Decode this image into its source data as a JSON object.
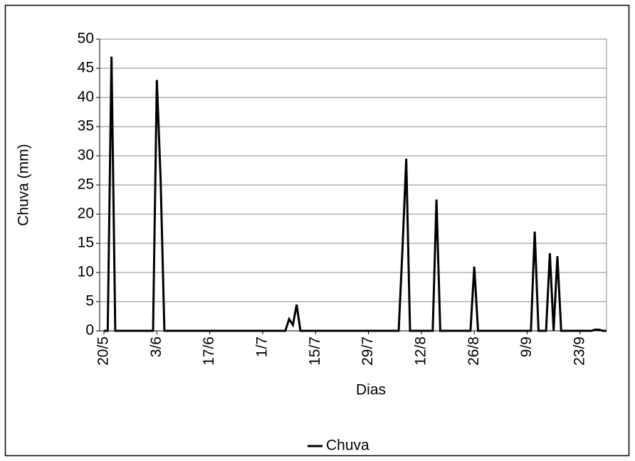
{
  "chart_data": {
    "type": "line",
    "x_label": "Dias",
    "y_label": "Chuva (mm)",
    "categories": [
      "20/5",
      null,
      null,
      null,
      null,
      null,
      null,
      null,
      null,
      null,
      null,
      null,
      null,
      null,
      "3/6",
      null,
      null,
      null,
      null,
      null,
      null,
      null,
      null,
      null,
      null,
      null,
      null,
      null,
      "17/6",
      null,
      null,
      null,
      null,
      null,
      null,
      null,
      null,
      null,
      null,
      null,
      null,
      null,
      "1/7",
      null,
      null,
      null,
      null,
      null,
      null,
      null,
      null,
      null,
      null,
      null,
      null,
      null,
      "15/7",
      null,
      null,
      null,
      null,
      null,
      null,
      null,
      null,
      null,
      null,
      null,
      null,
      null,
      "29/7",
      null,
      null,
      null,
      null,
      null,
      null,
      null,
      null,
      null,
      null,
      null,
      null,
      null,
      "12/8",
      null,
      null,
      null,
      null,
      null,
      null,
      null,
      null,
      null,
      null,
      null,
      null,
      null,
      "26/8",
      null,
      null,
      null,
      null,
      null,
      null,
      null,
      null,
      null,
      null,
      null,
      null,
      null,
      "9/9",
      null,
      null,
      null,
      null,
      null,
      null,
      null,
      null,
      null,
      null,
      null,
      null,
      null,
      "23/9",
      null,
      null,
      null,
      null,
      null,
      null,
      null
    ],
    "series": [
      {
        "name": "Chuva",
        "color": "#000000",
        "values": [
          0,
          0,
          47,
          0,
          0,
          0,
          0,
          0,
          0,
          0,
          0,
          0,
          0,
          0,
          43,
          26,
          0,
          0,
          0,
          0,
          0,
          0,
          0,
          0,
          0,
          0,
          0,
          0,
          0,
          0,
          0,
          0,
          0,
          0,
          0,
          0,
          0,
          0,
          0,
          0,
          0,
          0,
          0,
          0,
          0,
          0,
          0,
          0,
          0,
          2,
          1,
          4.5,
          0,
          0,
          0,
          0,
          0,
          0,
          0,
          0,
          0,
          0,
          0,
          0,
          0,
          0,
          0,
          0,
          0,
          0,
          0,
          0,
          0,
          0,
          0,
          0,
          0,
          0,
          0,
          14,
          29.5,
          0,
          0,
          0,
          0,
          0,
          0,
          0,
          22.5,
          0,
          0,
          0,
          0,
          0,
          0,
          0,
          0,
          0,
          11,
          0,
          0,
          0,
          0,
          0,
          0,
          0,
          0,
          0,
          0,
          0,
          0,
          0,
          0,
          0,
          17,
          0,
          0,
          0,
          13.3,
          0,
          12.8,
          0,
          0,
          0,
          0,
          0,
          0,
          0,
          0,
          0,
          0.2,
          0.2,
          0,
          0
        ]
      }
    ],
    "ylim": [
      0,
      50
    ],
    "yticks": [
      0,
      5,
      10,
      15,
      20,
      25,
      30,
      35,
      40,
      45,
      50
    ],
    "grid": true,
    "legend": "bottom"
  }
}
